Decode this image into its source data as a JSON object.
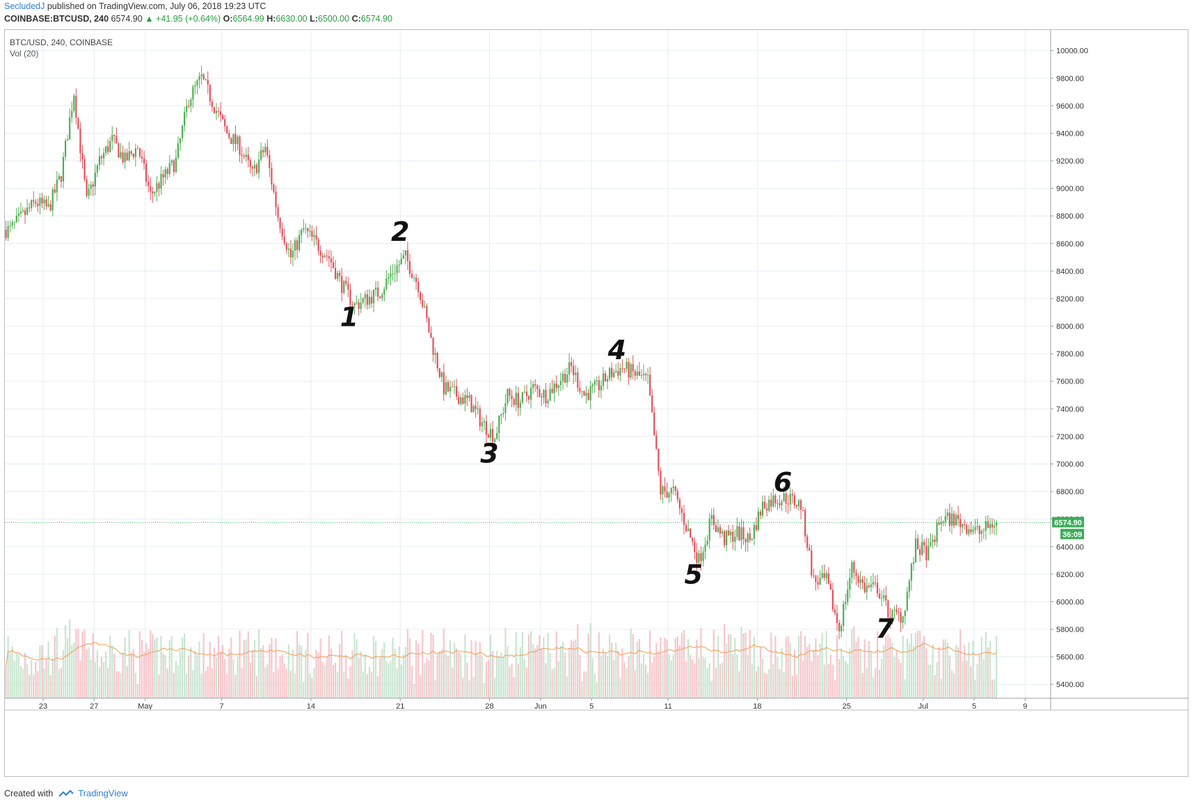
{
  "header": {
    "author": "SecludedJ",
    "published": "published on TradingView.com, July 06, 2018 19:23 UTC"
  },
  "symbol_line": {
    "symbol": "COINBASE:BTCUSD, 240",
    "last": "6574.90",
    "arrow": "▲",
    "change": "+41.95 (+0.64%)",
    "o_label": "O:",
    "o": "6564.99",
    "h_label": "H:",
    "h": "6630.00",
    "l_label": "L:",
    "l": "6500.00",
    "c_label": "C:",
    "c": "6574.90"
  },
  "footer": {
    "created_with": "Created with",
    "brand": "TradingView"
  },
  "colors": {
    "up": "#4caf50",
    "down": "#e0505b",
    "vol_up": "#c8e6d0",
    "vol_down": "#f6c6cb",
    "ma": "#f29a4e",
    "grid": "#e6edf2",
    "price_badge": "#3cae5a"
  },
  "chart_data": {
    "type": "candlestick",
    "pane_title": "BTC/USD, 240, COINBASE",
    "volume_title": "Vol (20)",
    "ylim": [
      5300,
      10150
    ],
    "y_ticks": [
      5400,
      5600,
      5800,
      6000,
      6200,
      6400,
      6600,
      6800,
      7000,
      7200,
      7400,
      7600,
      7800,
      8000,
      8200,
      8400,
      8600,
      8800,
      9000,
      9200,
      9400,
      9600,
      9800,
      10000
    ],
    "y_tick_labels": [
      "5400.00",
      "5600.00",
      "5800.00",
      "6000.00",
      "6200.00",
      "6400.00",
      "6600.00",
      "6800.00",
      "7000.00",
      "7200.00",
      "7400.00",
      "7600.00",
      "7800.00",
      "8000.00",
      "8200.00",
      "8400.00",
      "8600.00",
      "8800.00",
      "9000.00",
      "9200.00",
      "9400.00",
      "9600.00",
      "9800.00",
      "10000.00"
    ],
    "x_ticks": [
      {
        "label": "23",
        "date": "2018-04-23"
      },
      {
        "label": "27",
        "date": "2018-04-27"
      },
      {
        "label": "May",
        "date": "2018-05-01"
      },
      {
        "label": "7",
        "date": "2018-05-07"
      },
      {
        "label": "14",
        "date": "2018-05-14"
      },
      {
        "label": "21",
        "date": "2018-05-21"
      },
      {
        "label": "28",
        "date": "2018-05-28"
      },
      {
        "label": "Jun",
        "date": "2018-06-01"
      },
      {
        "label": "5",
        "date": "2018-06-05"
      },
      {
        "label": "11",
        "date": "2018-06-11"
      },
      {
        "label": "18",
        "date": "2018-06-18"
      },
      {
        "label": "25",
        "date": "2018-06-25"
      },
      {
        "label": "Jul",
        "date": "2018-07-01"
      },
      {
        "label": "5",
        "date": "2018-07-05"
      },
      {
        "label": "9",
        "date": "2018-07-09"
      }
    ],
    "x_range": [
      "2018-04-20",
      "2018-07-11"
    ],
    "last_date": "2018-07-06",
    "current_price": 6574.9,
    "current_price_label": "6574.90",
    "countdown_label": "36:09",
    "price_path": [
      {
        "date": "2018-04-20",
        "close": 8700
      },
      {
        "date": "2018-04-22",
        "close": 8900
      },
      {
        "date": "2018-04-23",
        "close": 8850
      },
      {
        "date": "2018-04-24",
        "close": 9100
      },
      {
        "date": "2018-04-25",
        "close": 9700
      },
      {
        "date": "2018-04-26",
        "close": 8900
      },
      {
        "date": "2018-04-27",
        "close": 9200
      },
      {
        "date": "2018-04-28",
        "close": 9350
      },
      {
        "date": "2018-04-29",
        "close": 9200
      },
      {
        "date": "2018-04-30",
        "close": 9300
      },
      {
        "date": "2018-05-01",
        "close": 8950
      },
      {
        "date": "2018-05-03",
        "close": 9200
      },
      {
        "date": "2018-05-04",
        "close": 9650
      },
      {
        "date": "2018-05-05",
        "close": 9800
      },
      {
        "date": "2018-05-06",
        "close": 9600
      },
      {
        "date": "2018-05-07",
        "close": 9400
      },
      {
        "date": "2018-05-08",
        "close": 9300
      },
      {
        "date": "2018-05-09",
        "close": 9100
      },
      {
        "date": "2018-05-10",
        "close": 9300
      },
      {
        "date": "2018-05-11",
        "close": 8800
      },
      {
        "date": "2018-05-12",
        "close": 8500
      },
      {
        "date": "2018-05-13",
        "close": 8700
      },
      {
        "date": "2018-05-14",
        "close": 8600
      },
      {
        "date": "2018-05-15",
        "close": 8500
      },
      {
        "date": "2018-05-16",
        "close": 8300
      },
      {
        "date": "2018-05-17",
        "close": 8150
      },
      {
        "date": "2018-05-18",
        "close": 8200
      },
      {
        "date": "2018-05-19",
        "close": 8250
      },
      {
        "date": "2018-05-20",
        "close": 8400
      },
      {
        "date": "2018-05-21",
        "close": 8500
      },
      {
        "date": "2018-05-22",
        "close": 8300
      },
      {
        "date": "2018-05-23",
        "close": 7900
      },
      {
        "date": "2018-05-24",
        "close": 7550
      },
      {
        "date": "2018-05-25",
        "close": 7500
      },
      {
        "date": "2018-05-26",
        "close": 7450
      },
      {
        "date": "2018-05-27",
        "close": 7300
      },
      {
        "date": "2018-05-28",
        "close": 7200
      },
      {
        "date": "2018-05-29",
        "close": 7500
      },
      {
        "date": "2018-05-30",
        "close": 7450
      },
      {
        "date": "2018-05-31",
        "close": 7550
      },
      {
        "date": "2018-06-01",
        "close": 7500
      },
      {
        "date": "2018-06-02",
        "close": 7600
      },
      {
        "date": "2018-06-03",
        "close": 7700
      },
      {
        "date": "2018-06-04",
        "close": 7500
      },
      {
        "date": "2018-06-05",
        "close": 7550
      },
      {
        "date": "2018-06-06",
        "close": 7650
      },
      {
        "date": "2018-06-07",
        "close": 7700
      },
      {
        "date": "2018-06-08",
        "close": 7650
      },
      {
        "date": "2018-06-09",
        "close": 7600
      },
      {
        "date": "2018-06-10",
        "close": 6800
      },
      {
        "date": "2018-06-11",
        "close": 6800
      },
      {
        "date": "2018-06-12",
        "close": 6550
      },
      {
        "date": "2018-06-13",
        "close": 6300
      },
      {
        "date": "2018-06-14",
        "close": 6600
      },
      {
        "date": "2018-06-15",
        "close": 6450
      },
      {
        "date": "2018-06-16",
        "close": 6500
      },
      {
        "date": "2018-06-17",
        "close": 6450
      },
      {
        "date": "2018-06-18",
        "close": 6700
      },
      {
        "date": "2018-06-19",
        "close": 6750
      },
      {
        "date": "2018-06-20",
        "close": 6750
      },
      {
        "date": "2018-06-21",
        "close": 6700
      },
      {
        "date": "2018-06-22",
        "close": 6150
      },
      {
        "date": "2018-06-23",
        "close": 6150
      },
      {
        "date": "2018-06-24",
        "close": 5800
      },
      {
        "date": "2018-06-25",
        "close": 6250
      },
      {
        "date": "2018-06-26",
        "close": 6100
      },
      {
        "date": "2018-06-27",
        "close": 6100
      },
      {
        "date": "2018-06-28",
        "close": 5900
      },
      {
        "date": "2018-06-29",
        "close": 5900
      },
      {
        "date": "2018-06-30",
        "close": 6400
      },
      {
        "date": "2018-07-01",
        "close": 6350
      },
      {
        "date": "2018-07-02",
        "close": 6600
      },
      {
        "date": "2018-07-03",
        "close": 6600
      },
      {
        "date": "2018-07-04",
        "close": 6550
      },
      {
        "date": "2018-07-05",
        "close": 6500
      },
      {
        "date": "2018-07-06",
        "close": 6575
      }
    ],
    "annotations": [
      {
        "label": "1",
        "date": "2018-05-17",
        "price": 8000
      },
      {
        "label": "2",
        "date": "2018-05-21",
        "price": 8620
      },
      {
        "label": "3",
        "date": "2018-05-28",
        "price": 7010
      },
      {
        "label": "4",
        "date": "2018-06-07",
        "price": 7760
      },
      {
        "label": "5",
        "date": "2018-06-13",
        "price": 6130
      },
      {
        "label": "6",
        "date": "2018-06-20",
        "price": 6800
      },
      {
        "label": "7",
        "date": "2018-06-28",
        "price": 5740
      }
    ]
  }
}
